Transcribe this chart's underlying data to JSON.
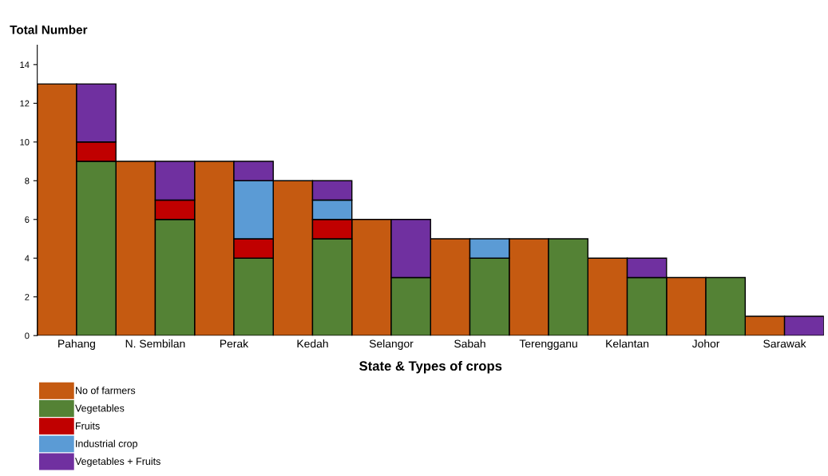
{
  "chart_data": {
    "type": "bar",
    "stacked": true,
    "ylabel": "Total Number",
    "xlabel": "State & Types of crops",
    "categories": [
      "Pahang",
      null,
      "N. Sembilan",
      null,
      "Perak",
      null,
      "Kedah",
      null,
      "Selangor",
      null,
      "Sabah",
      null,
      "Terengganu",
      null,
      "Kelantan",
      null,
      "Johor",
      null,
      "Sarawak",
      null
    ],
    "series": [
      {
        "name": "No of farmers",
        "color": "#c55a11",
        "values": [
          13,
          null,
          9,
          null,
          9,
          null,
          8,
          null,
          6,
          null,
          5,
          null,
          5,
          null,
          4,
          null,
          3,
          null,
          1,
          null
        ]
      },
      {
        "name": "Vegetables",
        "color": "#548235",
        "values": [
          null,
          9,
          null,
          6,
          null,
          4,
          null,
          5,
          null,
          3,
          null,
          4,
          null,
          5,
          null,
          3,
          null,
          3,
          null,
          0
        ]
      },
      {
        "name": "Fruits",
        "color": "#c00000",
        "values": [
          null,
          1,
          null,
          1,
          null,
          1,
          null,
          1,
          null,
          0,
          null,
          0,
          null,
          0,
          null,
          0,
          null,
          0,
          null,
          0
        ]
      },
      {
        "name": "Industrial crop",
        "color": "#5b9bd5",
        "values": [
          null,
          0,
          null,
          0,
          null,
          3,
          null,
          1,
          null,
          0,
          null,
          1,
          null,
          0,
          null,
          0,
          null,
          0,
          null,
          0
        ]
      },
      {
        "name": "Vegetables + Fruits",
        "color": "#7030a0",
        "values": [
          null,
          3,
          null,
          2,
          null,
          1,
          null,
          1,
          null,
          3,
          null,
          0,
          null,
          0,
          null,
          1,
          null,
          0,
          null,
          1
        ]
      }
    ],
    "ylim": [
      0,
      15
    ],
    "yticks": [
      0,
      2,
      4,
      6,
      8,
      10,
      12,
      14
    ],
    "grid": false,
    "legend": "bottom left"
  }
}
